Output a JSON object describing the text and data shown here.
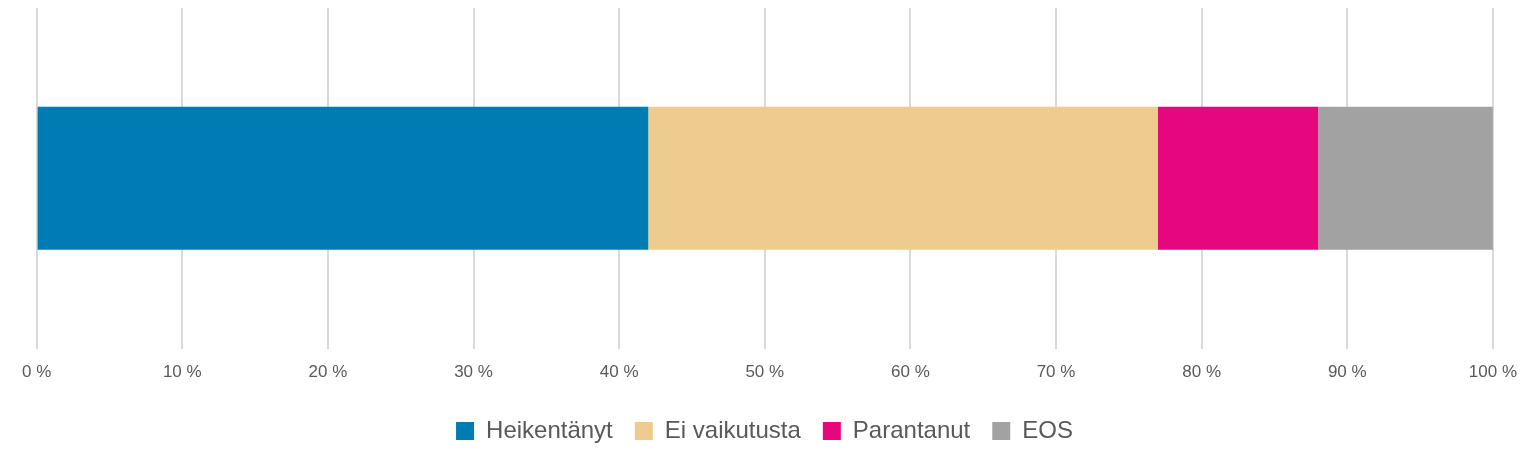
{
  "chart_data": {
    "type": "bar",
    "orientation": "horizontal",
    "stacked": true,
    "categories": [
      null
    ],
    "series": [
      {
        "name": "Heikentänyt",
        "color": "#007bb3",
        "values": [
          42
        ]
      },
      {
        "name": "Ei vaikutusta",
        "color": "#eecb8e",
        "values": [
          35
        ]
      },
      {
        "name": "Parantanut",
        "color": "#e6077f",
        "values": [
          11
        ]
      },
      {
        "name": "EOS",
        "color": "#a2a2a2",
        "values": [
          12
        ]
      }
    ],
    "xlim": [
      0,
      100
    ],
    "xticks": [
      {
        "value": 0,
        "label": "0 %"
      },
      {
        "value": 10,
        "label": "10 %"
      },
      {
        "value": 20,
        "label": "20 %"
      },
      {
        "value": 30,
        "label": "30 %"
      },
      {
        "value": 40,
        "label": "40 %"
      },
      {
        "value": 50,
        "label": "50 %"
      },
      {
        "value": 60,
        "label": "60 %"
      },
      {
        "value": 70,
        "label": "70 %"
      },
      {
        "value": 80,
        "label": "80 %"
      },
      {
        "value": 90,
        "label": "90 %"
      },
      {
        "value": 100,
        "label": "100 %"
      }
    ],
    "grid": "x",
    "legend": "bottom"
  }
}
